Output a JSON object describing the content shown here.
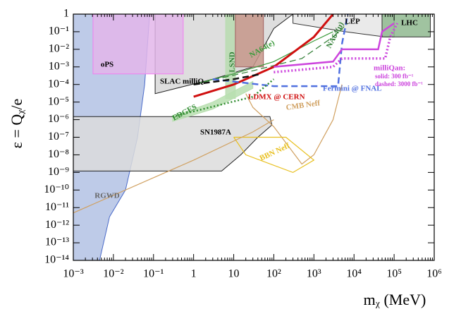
{
  "chart_data": {
    "type": "region",
    "x_label": "mᵪ (MeV)",
    "y_label": "ε = Qᵪ/e",
    "xscale": "log",
    "yscale": "log",
    "xlim": [
      0.001,
      1000000.0
    ],
    "ylim": [
      1e-14,
      1
    ],
    "xticks": [
      {
        "value": 0.001,
        "label": "10⁻³"
      },
      {
        "value": 0.01,
        "label": "10⁻²"
      },
      {
        "value": 0.1,
        "label": "10⁻¹"
      },
      1,
      10,
      {
        "value": 100,
        "label": "10²"
      },
      {
        "value": 1000,
        "label": "10³"
      },
      {
        "value": 10000,
        "label": "10⁴"
      },
      {
        "value": 100000,
        "label": "10⁵"
      },
      {
        "value": 1000000,
        "label": "10⁶"
      }
    ],
    "yticks": [
      {
        "value": 1e-14,
        "label": "10⁻¹⁴"
      },
      {
        "value": 1e-13,
        "label": "10⁻¹³"
      },
      {
        "value": 1e-12,
        "label": "10⁻¹²"
      },
      {
        "value": 1e-11,
        "label": "10⁻¹¹"
      },
      {
        "value": 1e-10,
        "label": "10⁻¹⁰"
      },
      {
        "value": 1e-09,
        "label": "10⁻⁹"
      },
      {
        "value": 1e-08,
        "label": "10⁻⁸"
      },
      {
        "value": 1e-07,
        "label": "10⁻⁷"
      },
      {
        "value": 1e-06,
        "label": "10⁻⁶"
      },
      {
        "value": 1e-05,
        "label": "10⁻⁵"
      },
      {
        "value": 0.0001,
        "label": "10⁻⁴"
      },
      {
        "value": 0.001,
        "label": "10⁻³"
      },
      {
        "value": 0.01,
        "label": "10⁻²"
      },
      {
        "value": 0.1,
        "label": "10⁻¹"
      },
      1
    ],
    "regions": [
      {
        "name": "RGWD",
        "color": "#b3c2e4",
        "edge": "#4a6ac8",
        "label_color": "#666666",
        "x": [
          0.001,
          0.08,
          0.06,
          0.04,
          0.02,
          0.008,
          0.0045,
          0.001
        ],
        "y": [
          1,
          1,
          0.0001,
          1e-07,
          1e-10,
          3e-12,
          1e-14,
          1e-14
        ]
      },
      {
        "name": "SN1987A",
        "color": "#dcdcdc",
        "edge": "#222222",
        "label_color": "#000000",
        "x": [
          0.001,
          80,
          90,
          40,
          15,
          5,
          0.001
        ],
        "y": [
          1.5e-06,
          1.5e-06,
          5e-07,
          1e-07,
          1e-08,
          1.2e-09,
          1.2e-09
        ]
      },
      {
        "name": "SLAC milliQ",
        "color": "#d8d8d8",
        "edge": "#222222",
        "label_color": "#000000",
        "x": [
          0.11,
          0.11,
          3,
          30,
          100,
          300
        ],
        "y": [
          1,
          3e-05,
          0.0002,
          0.001,
          0.15,
          1
        ]
      },
      {
        "name": "LEP",
        "color": "#e6e6e6",
        "edge": "#333333",
        "label_color": "#000000",
        "x": [
          300,
          300,
          6000,
          60000,
          100000,
          100000
        ],
        "y": [
          1,
          0.3,
          0.1,
          0.05,
          0.05,
          1
        ]
      },
      {
        "name": "oPS",
        "color": "#e3b6ea",
        "edge": "#f07ef0",
        "label_color": "#000000",
        "x": [
          0.0031,
          0.55,
          0.55,
          0.0031
        ],
        "y": [
          1,
          1,
          0.0004,
          0.0004
        ]
      },
      {
        "name": "LSND",
        "color": "#b9dcb0",
        "edge": "#b9dcb0",
        "label_color": "#2e7d32",
        "x": [
          6.3,
          11,
          11,
          6.3
        ],
        "y": [
          1,
          1,
          1.6e-05,
          1.6e-05
        ]
      },
      {
        "color": "#c6968a",
        "edge": "#a06060",
        "x": [
          11,
          55,
          55,
          11
        ],
        "y": [
          1,
          1,
          0.001,
          0.001
        ]
      },
      {
        "name": "EDGES",
        "color": "#b8dfb0",
        "edge": "#b8dfb0",
        "label_color": "#2e8b2e",
        "x": [
          0.3,
          3,
          30,
          30,
          3,
          0.3
        ],
        "y": [
          1.5e-06,
          1e-05,
          0.00015,
          6e-05,
          4e-06,
          8e-07
        ]
      },
      {
        "name": "LHC",
        "color": "#8fb88f",
        "edge": "#333333",
        "label_color": "#000000",
        "x": [
          50000,
          800000,
          800000,
          50000
        ],
        "y": [
          1,
          1,
          0.05,
          0.05
        ]
      }
    ],
    "lines": [
      {
        "name": "NA64(e)",
        "color": "#3a9a3a",
        "dash": "solid",
        "x": [
          1,
          10,
          100,
          1000,
          3000
        ],
        "y": [
          0.0001,
          0.0004,
          0.002,
          0.03,
          0.1
        ]
      },
      {
        "name": "NA64(μ)",
        "color": "#2e7d32",
        "dash": "dashed",
        "x": [
          1,
          30,
          500,
          3000,
          7000
        ],
        "y": [
          0.0001,
          0.0006,
          0.003,
          0.05,
          0.3
        ]
      },
      {
        "name": "LDMX @ CERN",
        "color": "#d01010",
        "dash": "solid",
        "x": [
          1,
          10,
          100,
          1000,
          3000
        ],
        "y": [
          2e-05,
          0.0001,
          0.001,
          0.05,
          1
        ]
      },
      {
        "name": "Fermini @ FNAL",
        "color": "#5070e0",
        "dash": "dashed",
        "x": [
          3,
          100,
          4000,
          5000,
          7000
        ],
        "y": [
          0.0002,
          8e-05,
          8e-05,
          0.02,
          1
        ]
      },
      {
        "name": "milliQan:",
        "color": "#cc44dd",
        "dash": "solid",
        "x": [
          100,
          3000,
          5000,
          40000,
          50000,
          100000
        ],
        "y": [
          0.001,
          0.002,
          0.01,
          0.01,
          0.1,
          0.3
        ]
      },
      {
        "color": "#cc44dd",
        "dash": "dotted",
        "x": [
          100,
          3000,
          5000,
          60000,
          80000,
          120000
        ],
        "y": [
          0.0005,
          0.001,
          0.003,
          0.003,
          0.05,
          0.3
        ]
      },
      {
        "color": "#2e8b2e",
        "dash": "dotted",
        "x": [
          0.3,
          30,
          100
        ],
        "y": [
          1.5e-06,
          2e-05,
          0.0002
        ]
      },
      {
        "color": "#111111",
        "dash": "dashed",
        "x": [
          1,
          10,
          50
        ],
        "y": [
          0.0001,
          0.0002,
          0.0004
        ]
      },
      {
        "name": "CMB Neff",
        "color": "#d0a060",
        "dash": "solid",
        "x": [
          20,
          30,
          100,
          500,
          1000,
          3000,
          5000
        ],
        "y": [
          3e-05,
          5e-06,
          4e-07,
          3e-09,
          1e-08,
          1e-06,
          0.0001
        ]
      },
      {
        "name": "BBN Neff",
        "color": "#e8c020",
        "dash": "solid",
        "x": [
          10,
          200,
          1000,
          300,
          20,
          10
        ],
        "y": [
          1e-07,
          1e-07,
          5e-09,
          1e-09,
          1e-08,
          1e-07
        ]
      },
      {
        "color": "#d0a060",
        "dash": "solid",
        "x": [
          0.001,
          1,
          30,
          100
        ],
        "y": [
          5e-12,
          5e-09,
          2e-07,
          1e-06
        ]
      }
    ],
    "annotations": [
      {
        "text": "solid: 300 fb⁻¹",
        "color": "#cc44dd"
      },
      {
        "text": "dashed: 3000 fb⁻¹",
        "color": "#cc44dd"
      }
    ]
  }
}
